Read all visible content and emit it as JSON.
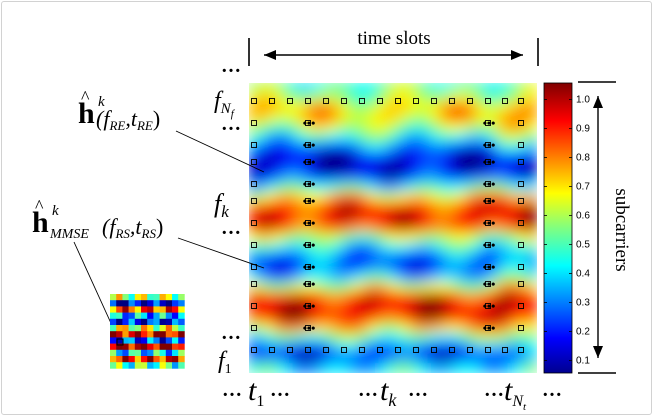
{
  "figure": {
    "time_axis_label": "time slots",
    "subcarrier_axis_label": "subcarriers",
    "ellipsis": "…",
    "dots": "•••",
    "subcarrier_labels": [
      {
        "base": "f",
        "sub": "N",
        "subsub": "f"
      },
      {
        "base": "f",
        "sub": "k"
      },
      {
        "base": "f",
        "sub": "1"
      }
    ],
    "time_labels": [
      {
        "base": "t",
        "sub": "1"
      },
      {
        "base": "t",
        "sub": "k"
      },
      {
        "base": "t",
        "sub": "N",
        "subsub": "t"
      }
    ],
    "annotations": [
      {
        "symbol": "h",
        "hat": "^",
        "sup": "k",
        "args": "(f",
        "a1": "RE",
        "mid": ",t",
        "a2": "RE",
        "close": ")"
      },
      {
        "symbol": "h",
        "hat": "^",
        "sup": "k",
        "sub": "MMSE",
        "args": "(f",
        "a1": "RS",
        "mid": ",t",
        "a2": "RS",
        "close": ")"
      }
    ]
  },
  "colorbar": {
    "colormap": "jet",
    "ticks": [
      "1.0",
      "0.9",
      "0.8",
      "0.7",
      "0.6",
      "0.5",
      "0.4",
      "0.3",
      "0.2",
      "0.1"
    ]
  }
}
